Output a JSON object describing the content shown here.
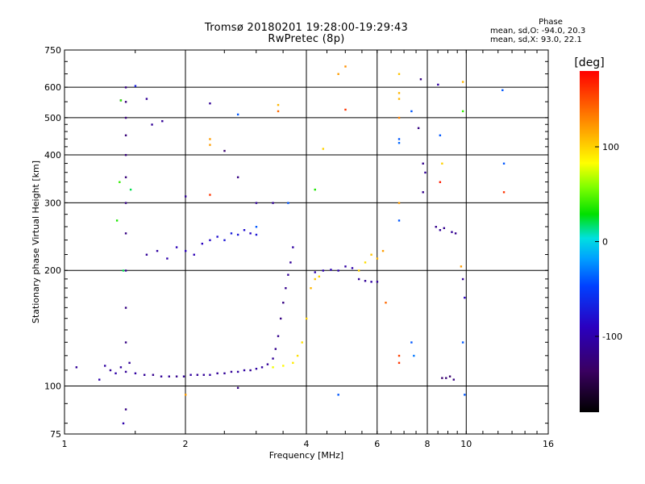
{
  "chart_data": {
    "type": "scatter",
    "title": "Tromsø 20180201 19:28:00-19:29:43",
    "subtitle": "RwPretec (8p)",
    "xlabel": "Frequency [MHz]",
    "ylabel": "Stationary phase Virtual Height [km]",
    "x_scale": "log2",
    "y_scale": "log",
    "xlim": [
      1,
      16
    ],
    "ylim": [
      75,
      750
    ],
    "x_ticks": [
      1,
      2,
      4,
      6,
      8,
      10,
      16
    ],
    "x_tick_labels": [
      "1",
      "2",
      "4",
      "6",
      "8",
      "10",
      "16"
    ],
    "y_ticks": [
      75,
      100,
      200,
      300,
      400,
      500,
      600,
      750
    ],
    "y_tick_labels": [
      "75",
      "100",
      "200",
      "300",
      "400",
      "500",
      "600",
      "750"
    ],
    "grid": true,
    "phase_stats": {
      "header": "Phase",
      "line_o": "mean, sd,O: -94.0, 20.3",
      "line_x": "mean, sd,X:  93.0, 22.1"
    },
    "colorbar": {
      "label": "[deg]",
      "range": [
        -180,
        180
      ],
      "ticks": [
        100,
        0,
        -100
      ],
      "tick_labels": [
        "100",
        "0",
        "-100"
      ]
    },
    "series": [
      {
        "points": [
          [
            1.07,
            112,
            -110
          ],
          [
            1.22,
            104,
            -100
          ],
          [
            1.26,
            113,
            -105
          ],
          [
            1.3,
            110,
            -110
          ],
          [
            1.34,
            108,
            -100
          ],
          [
            1.38,
            112,
            -105
          ],
          [
            1.42,
            109,
            -110
          ],
          [
            1.5,
            108,
            -105
          ],
          [
            1.58,
            107,
            -110
          ],
          [
            1.66,
            107,
            -115
          ],
          [
            1.74,
            106,
            -110
          ],
          [
            1.82,
            106,
            -110
          ],
          [
            1.9,
            106,
            -115
          ],
          [
            1.98,
            106,
            -110
          ],
          [
            2.06,
            107,
            -105
          ],
          [
            2.14,
            107,
            -110
          ],
          [
            2.22,
            107,
            -110
          ],
          [
            2.3,
            107,
            -105
          ],
          [
            2.4,
            108,
            -110
          ],
          [
            2.5,
            108,
            -110
          ],
          [
            2.6,
            109,
            -110
          ],
          [
            2.7,
            109,
            -105
          ],
          [
            2.8,
            110,
            -105
          ],
          [
            2.9,
            110,
            -110
          ],
          [
            3.0,
            111,
            -105
          ],
          [
            3.1,
            112,
            -105
          ],
          [
            3.2,
            114,
            -110
          ],
          [
            3.3,
            118,
            -110
          ],
          [
            3.35,
            125,
            -115
          ],
          [
            3.4,
            135,
            -115
          ],
          [
            3.45,
            150,
            -120
          ],
          [
            3.5,
            165,
            -120
          ],
          [
            3.55,
            180,
            -115
          ],
          [
            3.6,
            195,
            -110
          ],
          [
            3.65,
            210,
            -110
          ],
          [
            3.7,
            230,
            -105
          ]
        ]
      },
      {
        "points": [
          [
            1.42,
            600,
            -120
          ],
          [
            1.42,
            550,
            -125
          ],
          [
            1.42,
            500,
            -125
          ],
          [
            1.42,
            450,
            -125
          ],
          [
            1.42,
            400,
            -125
          ],
          [
            1.42,
            350,
            -125
          ],
          [
            1.42,
            300,
            -120
          ],
          [
            1.42,
            250,
            -120
          ],
          [
            1.42,
            200,
            -115
          ],
          [
            1.42,
            160,
            -120
          ],
          [
            1.42,
            130,
            -120
          ],
          [
            1.45,
            115,
            -110
          ],
          [
            1.42,
            87,
            -120
          ],
          [
            1.38,
            555,
            -125
          ],
          [
            1.4,
            80,
            -100
          ]
        ]
      },
      {
        "points": [
          [
            1.35,
            270,
            35
          ],
          [
            1.37,
            340,
            40
          ],
          [
            1.38,
            555,
            40
          ],
          [
            1.4,
            200,
            20
          ],
          [
            1.46,
            325,
            20
          ]
        ]
      },
      {
        "points": [
          [
            1.6,
            220,
            -110
          ],
          [
            1.7,
            225,
            -105
          ],
          [
            1.8,
            215,
            -100
          ],
          [
            1.9,
            230,
            -95
          ],
          [
            2.0,
            225,
            -90
          ],
          [
            2.1,
            220,
            -95
          ],
          [
            2.2,
            235,
            -90
          ],
          [
            2.3,
            240,
            -85
          ],
          [
            2.4,
            245,
            -80
          ],
          [
            2.5,
            240,
            -75
          ],
          [
            2.6,
            250,
            -70
          ],
          [
            2.7,
            248,
            -75
          ],
          [
            2.8,
            255,
            -80
          ],
          [
            2.9,
            250,
            -85
          ],
          [
            3.0,
            248,
            -75
          ]
        ]
      },
      {
        "points": [
          [
            3.3,
            112,
            80
          ],
          [
            3.5,
            113,
            85
          ],
          [
            3.7,
            115,
            90
          ],
          [
            3.8,
            120,
            95
          ],
          [
            3.9,
            130,
            95
          ],
          [
            4.0,
            150,
            100
          ],
          [
            4.1,
            180,
            110
          ],
          [
            4.2,
            190,
            105
          ],
          [
            4.3,
            193,
            100
          ]
        ]
      },
      {
        "points": [
          [
            4.2,
            198,
            -100
          ],
          [
            4.4,
            200,
            -100
          ],
          [
            4.6,
            201,
            -95
          ],
          [
            4.8,
            200,
            -100
          ],
          [
            5.0,
            205,
            -105
          ],
          [
            5.2,
            203,
            -100
          ],
          [
            5.4,
            190,
            -110
          ],
          [
            5.6,
            188,
            -110
          ],
          [
            5.8,
            187,
            -105
          ],
          [
            6.0,
            187,
            -110
          ]
        ]
      },
      {
        "points": [
          [
            5.4,
            200,
            100
          ],
          [
            5.6,
            210,
            95
          ],
          [
            5.8,
            220,
            105
          ],
          [
            6.0,
            215,
            110
          ],
          [
            6.2,
            225,
            120
          ],
          [
            6.3,
            165,
            140
          ]
        ]
      },
      {
        "points": [
          [
            8.7,
            105,
            -130
          ],
          [
            8.9,
            105,
            -125
          ],
          [
            9.1,
            106,
            -130
          ],
          [
            9.3,
            104,
            -120
          ],
          [
            8.4,
            260,
            -115
          ],
          [
            8.6,
            255,
            -110
          ],
          [
            8.8,
            258,
            -115
          ],
          [
            9.2,
            252,
            -110
          ],
          [
            9.4,
            250,
            -115
          ]
        ]
      },
      {
        "points": [
          [
            4.2,
            325,
            35
          ],
          [
            4.4,
            415,
            100
          ],
          [
            4.8,
            650,
            120
          ],
          [
            5.0,
            680,
            125
          ],
          [
            5.0,
            525,
            160
          ],
          [
            6.8,
            650,
            105
          ],
          [
            6.8,
            580,
            110
          ],
          [
            6.8,
            560,
            110
          ],
          [
            6.8,
            500,
            130
          ],
          [
            6.8,
            440,
            -40
          ],
          [
            6.8,
            430,
            -35
          ],
          [
            6.8,
            300,
            120
          ],
          [
            6.8,
            270,
            -40
          ],
          [
            6.8,
            120,
            155
          ],
          [
            6.8,
            115,
            160
          ],
          [
            7.3,
            520,
            -40
          ],
          [
            7.7,
            630,
            -120
          ],
          [
            7.6,
            470,
            -120
          ],
          [
            7.8,
            380,
            -115
          ],
          [
            7.9,
            360,
            -110
          ],
          [
            7.8,
            320,
            -115
          ],
          [
            8.5,
            610,
            -105
          ],
          [
            8.6,
            450,
            -40
          ],
          [
            8.7,
            380,
            100
          ],
          [
            8.6,
            340,
            170
          ],
          [
            9.8,
            620,
            110
          ],
          [
            9.8,
            520,
            40
          ],
          [
            9.7,
            205,
            120
          ],
          [
            9.8,
            190,
            -110
          ],
          [
            9.9,
            170,
            -90
          ],
          [
            9.8,
            130,
            -40
          ],
          [
            9.9,
            95,
            -40
          ],
          [
            12.3,
            590,
            -40
          ],
          [
            12.4,
            380,
            -40
          ],
          [
            12.4,
            320,
            160
          ],
          [
            3.4,
            540,
            110
          ],
          [
            3.4,
            520,
            140
          ],
          [
            3.3,
            300,
            -110
          ],
          [
            2.3,
            545,
            -110
          ],
          [
            2.3,
            440,
            120
          ],
          [
            2.3,
            425,
            120
          ],
          [
            2.3,
            315,
            160
          ],
          [
            2.5,
            410,
            -130
          ],
          [
            2.7,
            350,
            -120
          ],
          [
            2.7,
            510,
            -40
          ],
          [
            1.5,
            605,
            -70
          ],
          [
            1.6,
            560,
            -110
          ],
          [
            1.65,
            480,
            -110
          ],
          [
            1.75,
            490,
            -110
          ],
          [
            2.0,
            312,
            -110
          ],
          [
            2.0,
            95,
            120
          ],
          [
            4.8,
            95,
            -40
          ],
          [
            2.7,
            99,
            -120
          ],
          [
            3.0,
            300,
            -110
          ],
          [
            3.6,
            300,
            -40
          ],
          [
            3.0,
            260,
            -40
          ],
          [
            7.3,
            130,
            -40
          ],
          [
            7.4,
            120,
            -30
          ]
        ]
      }
    ]
  }
}
